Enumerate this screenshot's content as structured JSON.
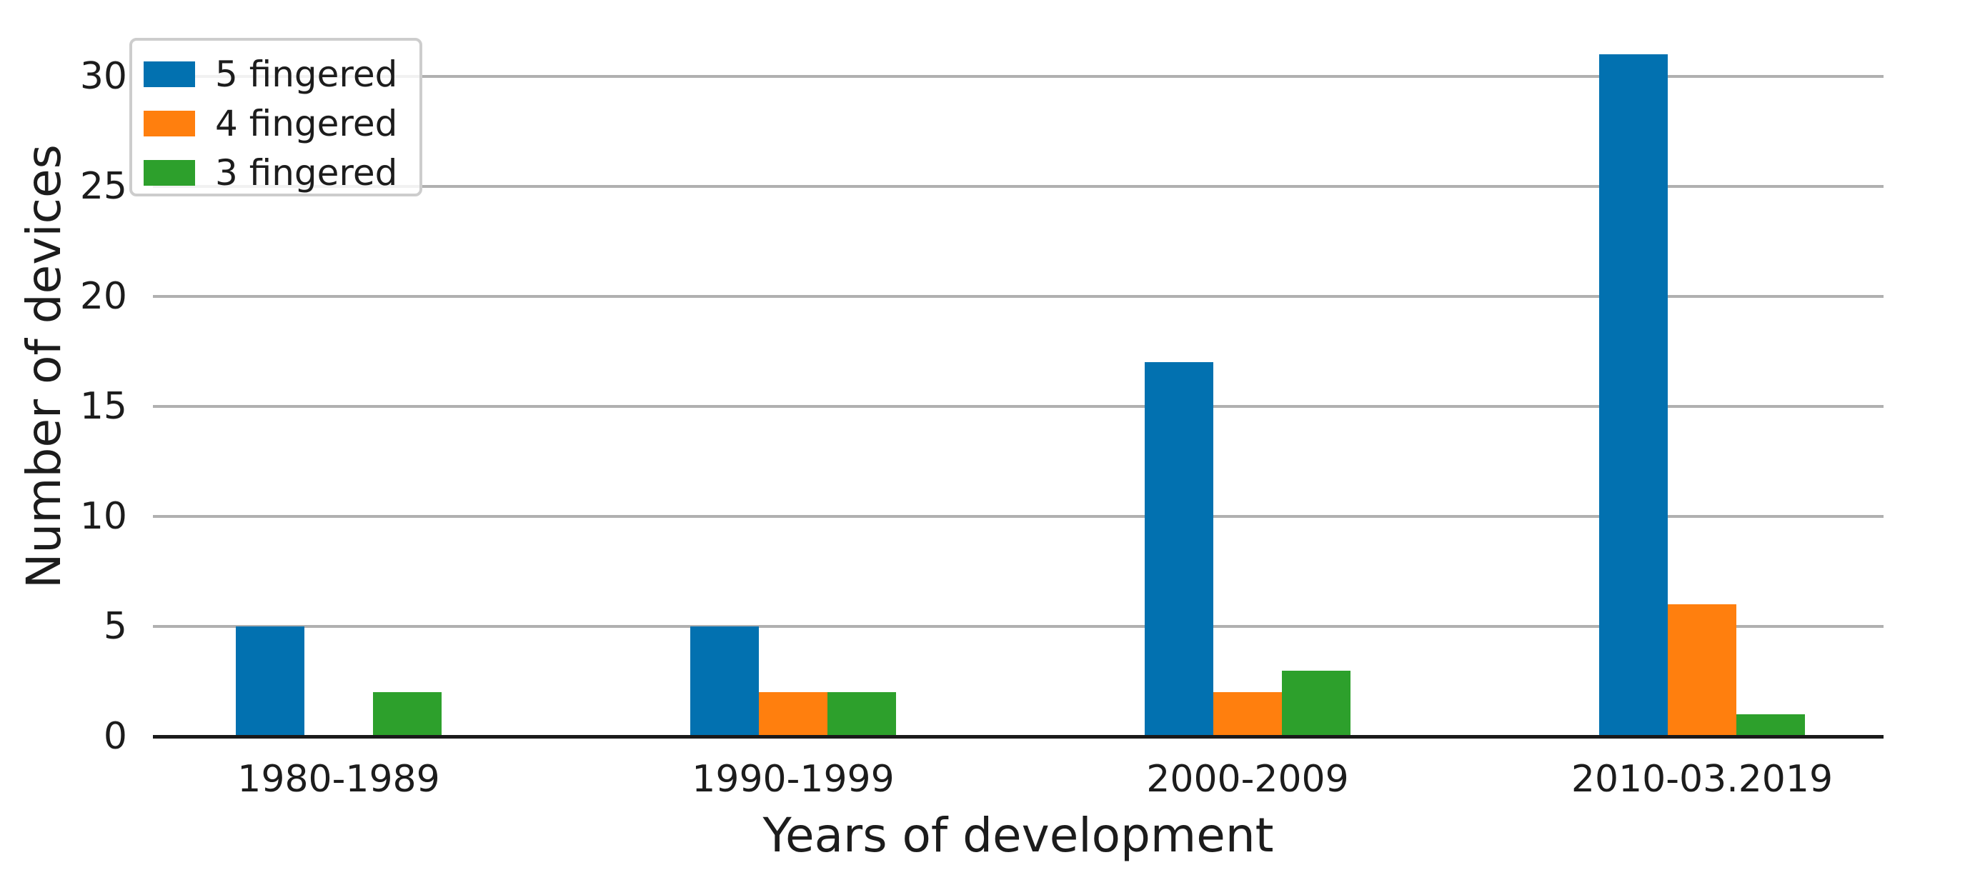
{
  "chart_data": {
    "type": "bar",
    "title": "",
    "xlabel": "Years of development",
    "ylabel": "Number of devices",
    "categories": [
      "1980-1989",
      "1990-1999",
      "2000-2009",
      "2010-03.2019"
    ],
    "series": [
      {
        "name": "5 fingered",
        "color": "#0271b0",
        "values": [
          5,
          5,
          17,
          31
        ]
      },
      {
        "name": "4 fingered",
        "color": "#ff7f0e",
        "values": [
          0,
          2,
          2,
          6
        ]
      },
      {
        "name": "3 fingered",
        "color": "#2da02c",
        "values": [
          2,
          2,
          3,
          1
        ]
      }
    ],
    "yticks": [
      0,
      5,
      10,
      15,
      20,
      25,
      30
    ],
    "ylim": [
      0,
      33.5
    ],
    "grid": "horizontal",
    "legend_position": "upper-left"
  },
  "colors": {
    "background": "#ffffff",
    "grid": "#b0b0b0",
    "axis_line": "#1a1a1a",
    "text": "#1c1c1c",
    "legend_border": "#cdcdcd"
  }
}
